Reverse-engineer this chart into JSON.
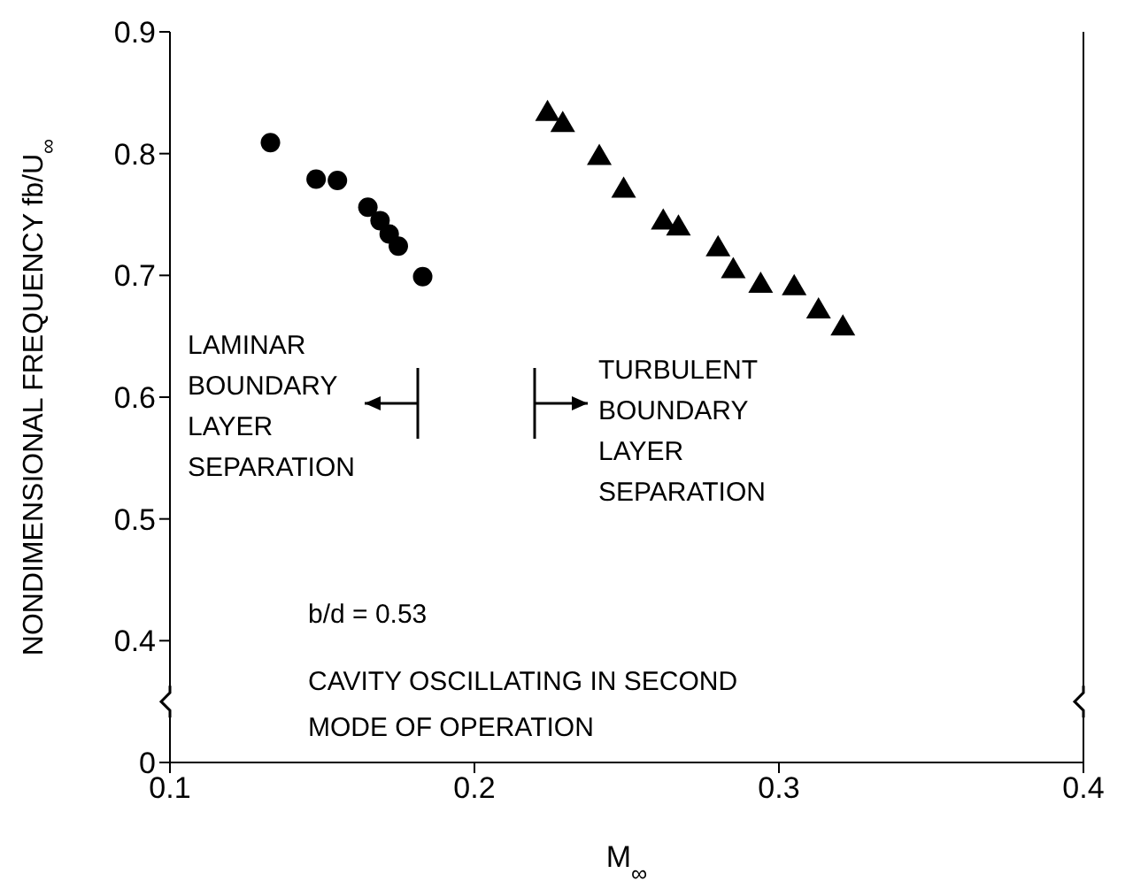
{
  "chart_data": {
    "type": "scatter",
    "xlabel": "M$_{∞}$",
    "ylabel": "NONDIMENSIONAL FREQUENCY  fb/U$_{∞}$",
    "xlim": [
      0.1,
      0.4
    ],
    "xticks": [
      0.1,
      0.2,
      0.3,
      0.4
    ],
    "ylim": [
      0.3,
      0.9
    ],
    "yticks": [
      {
        "value": 0.3,
        "label": "0"
      },
      0.4,
      0.5,
      0.6,
      0.7,
      0.8,
      0.9
    ],
    "series": [
      {
        "color": "#000000",
        "marker": "circle",
        "x": [
          0.133,
          0.148,
          0.155,
          0.165,
          0.169,
          0.172,
          0.175,
          0.183
        ],
        "values": [
          0.809,
          0.779,
          0.778,
          0.756,
          0.745,
          0.734,
          0.724,
          0.699
        ]
      },
      {
        "color": "#000000",
        "marker": "triangle",
        "x": [
          0.224,
          0.229,
          0.241,
          0.249,
          0.262,
          0.267,
          0.28,
          0.285,
          0.294,
          0.305,
          0.313,
          0.321
        ],
        "values": [
          0.834,
          0.825,
          0.798,
          0.771,
          0.745,
          0.74,
          0.723,
          0.705,
          0.693,
          0.691,
          0.672,
          0.658
        ]
      }
    ],
    "annotations": [
      "LAMINAR\nBOUNDARY\nLAYER\nSEPARATION",
      "TURBULENT\nBOUNDARY\nLAYER\nSEPARATION",
      "b/d = 0.53",
      "CAVITY OSCILLATING IN SECOND\nMODE OF OPERATION"
    ]
  }
}
